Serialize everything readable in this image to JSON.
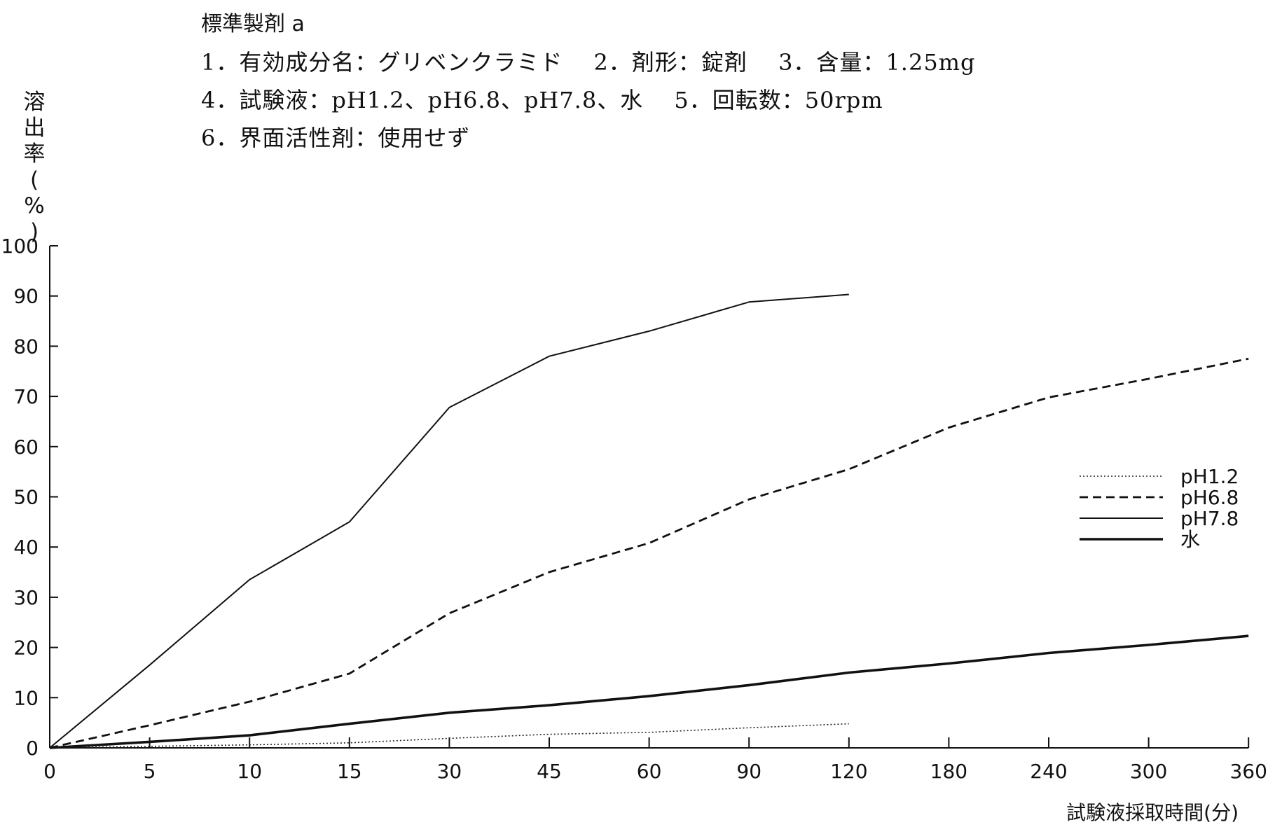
{
  "header": {
    "title": "標準製剤 a",
    "line1": "1．有効成分名：グリベンクラミド　 2．剤形：錠剤　 3．含量：1.25mg",
    "line2": "4．試験液：pH1.2、pH6.8、pH7.8、水　 5．回転数：50rpm",
    "line3": "6．界面活性剤：使用せず"
  },
  "chart_data": {
    "type": "line",
    "title": "",
    "xlabel": "試験液採取時間(分)",
    "ylabel": "溶出率(%)",
    "ylabel_chars": [
      "溶",
      "出",
      "率",
      "(",
      "%",
      ")"
    ],
    "categories": [
      "0",
      "5",
      "10",
      "15",
      "30",
      "45",
      "60",
      "90",
      "120",
      "180",
      "240",
      "300",
      "360"
    ],
    "ylim": [
      0,
      100
    ],
    "yticks": [
      "0",
      "10",
      "20",
      "30",
      "40",
      "50",
      "60",
      "70",
      "80",
      "90",
      "100"
    ],
    "grid": false,
    "legend_position": "right",
    "series": [
      {
        "name": "pH1.2",
        "style": "dotted",
        "x": [
          "0",
          "5",
          "10",
          "15",
          "30",
          "45",
          "60",
          "90",
          "120"
        ],
        "values": [
          0,
          0.3,
          0.6,
          1.0,
          1.9,
          2.7,
          3.1,
          4.0,
          4.8
        ]
      },
      {
        "name": "pH6.8",
        "style": "dashed",
        "x": [
          "0",
          "5",
          "10",
          "15",
          "30",
          "45",
          "60",
          "90",
          "120",
          "180",
          "240",
          "300",
          "360"
        ],
        "values": [
          0,
          4.5,
          9.2,
          14.8,
          26.8,
          35.0,
          40.8,
          49.5,
          55.5,
          63.8,
          69.8,
          73.5,
          77.5
        ]
      },
      {
        "name": "pH7.8",
        "style": "solid-thin",
        "x": [
          "0",
          "5",
          "10",
          "15",
          "30",
          "45",
          "60",
          "90",
          "120"
        ],
        "values": [
          0,
          16.5,
          33.5,
          45.0,
          67.8,
          78.0,
          83.0,
          88.8,
          90.3
        ]
      },
      {
        "name": "水",
        "style": "solid-thick",
        "x": [
          "0",
          "5",
          "10",
          "15",
          "30",
          "45",
          "60",
          "90",
          "120",
          "180",
          "240",
          "300",
          "360"
        ],
        "values": [
          0,
          1.2,
          2.5,
          4.8,
          7.0,
          8.5,
          10.3,
          12.5,
          15.0,
          16.8,
          18.9,
          20.5,
          22.3
        ]
      }
    ]
  }
}
